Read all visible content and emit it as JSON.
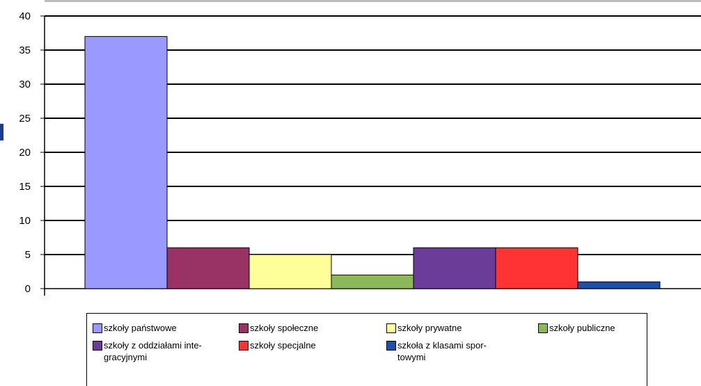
{
  "chart_data": {
    "type": "bar",
    "title": "",
    "xlabel": "",
    "ylabel": "",
    "ylim": [
      0,
      40
    ],
    "yticks": [
      0,
      5,
      10,
      15,
      20,
      25,
      30,
      35,
      40
    ],
    "grid": true,
    "legend_position": "bottom",
    "series": [
      {
        "name": "szkoły państwowe",
        "value": 37,
        "color": "#9999ff"
      },
      {
        "name": "szkoły społeczne",
        "value": 6,
        "color": "#993366"
      },
      {
        "name": "szkoły prywatne",
        "value": 5,
        "color": "#ffff99"
      },
      {
        "name": "szkoły publiczne",
        "value": 2,
        "color": "#8cb85c"
      },
      {
        "name": "szkoły z oddziałami inte-\ngracyjnymi",
        "value": 6,
        "color": "#6b3d99"
      },
      {
        "name": "szkoły specjalne",
        "value": 6,
        "color": "#ff3333"
      },
      {
        "name": "szkoła z klasami spor-\ntowymi",
        "value": 1,
        "color": "#1f4fa8"
      }
    ]
  }
}
